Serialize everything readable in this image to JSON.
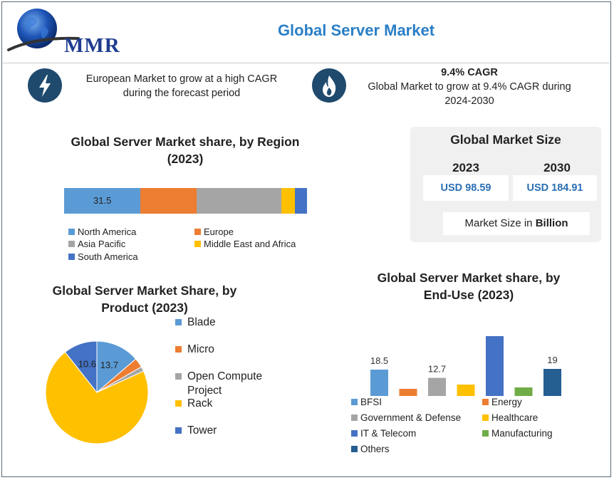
{
  "header": {
    "logo_text": "MMR",
    "title": "Global Server Market"
  },
  "icons": {
    "left": "lightning-bolt-icon",
    "right": "flame-icon"
  },
  "notes": {
    "left": "European Market to grow at a high CAGR during the forecast period",
    "right_head": "9.4% CAGR",
    "right_body": "Global Market to grow at 9.4% CAGR during 2024-2030"
  },
  "market_size": {
    "title": "Global Market Size",
    "year_a": "2023",
    "value_a": "USD 98.59",
    "year_b": "2030",
    "value_b": "USD 184.91",
    "unit_prefix": "Market Size in ",
    "unit_bold": "Billion"
  },
  "colors": {
    "blue_light": "#5b9bd5",
    "orange": "#ed7d31",
    "gray": "#a5a5a5",
    "yellow": "#ffc000",
    "blue_dark": "#4472c4",
    "green": "#70ad47",
    "navy": "#255e91"
  },
  "chart_data": [
    {
      "type": "bar",
      "orientation": "horizontal-stacked",
      "title": "Global Server Market share, by Region",
      "title_year": "(2023)",
      "series": [
        {
          "name": "North America",
          "value": 31.5,
          "label": "31.5",
          "color": "#5b9bd5"
        },
        {
          "name": "Europe",
          "value": 23,
          "label": "",
          "color": "#ed7d31"
        },
        {
          "name": "Asia Pacific",
          "value": 35,
          "label": "",
          "color": "#a5a5a5"
        },
        {
          "name": "Middle East and Africa",
          "value": 5.5,
          "label": "",
          "color": "#ffc000"
        },
        {
          "name": "South America",
          "value": 5,
          "label": "",
          "color": "#4472c4"
        }
      ],
      "legend_position": "bottom"
    },
    {
      "type": "pie",
      "title": "Global Server Market Share, by",
      "title_line2": "Product (2023)",
      "slices": [
        {
          "name": "Blade",
          "value": 13.7,
          "label": "13.7",
          "color": "#5b9bd5"
        },
        {
          "name": "Micro",
          "value": 3,
          "label": "",
          "color": "#ed7d31"
        },
        {
          "name": "Open Compute Project",
          "value": 1.5,
          "label": "",
          "color": "#a5a5a5"
        },
        {
          "name": "Rack",
          "value": 71.2,
          "label": "",
          "color": "#ffc000"
        },
        {
          "name": "Tower",
          "value": 10.6,
          "label": "10.6",
          "color": "#4472c4"
        }
      ],
      "legend_position": "right"
    },
    {
      "type": "bar",
      "title": "Global Server Market share, by",
      "title_line2": "End-Use (2023)",
      "categories": [
        "BFSI",
        "Energy",
        "Government & Defense",
        "Healthcare",
        "IT & Telecom",
        "Manufacturing",
        "Others"
      ],
      "values": [
        18.5,
        5,
        12.7,
        8,
        42,
        6,
        19
      ],
      "labels": [
        "18.5",
        "",
        "12.7",
        "",
        "",
        "",
        "19"
      ],
      "colors": [
        "#5b9bd5",
        "#ed7d31",
        "#a5a5a5",
        "#ffc000",
        "#4472c4",
        "#70ad47",
        "#255e91"
      ],
      "legend_position": "bottom"
    }
  ]
}
